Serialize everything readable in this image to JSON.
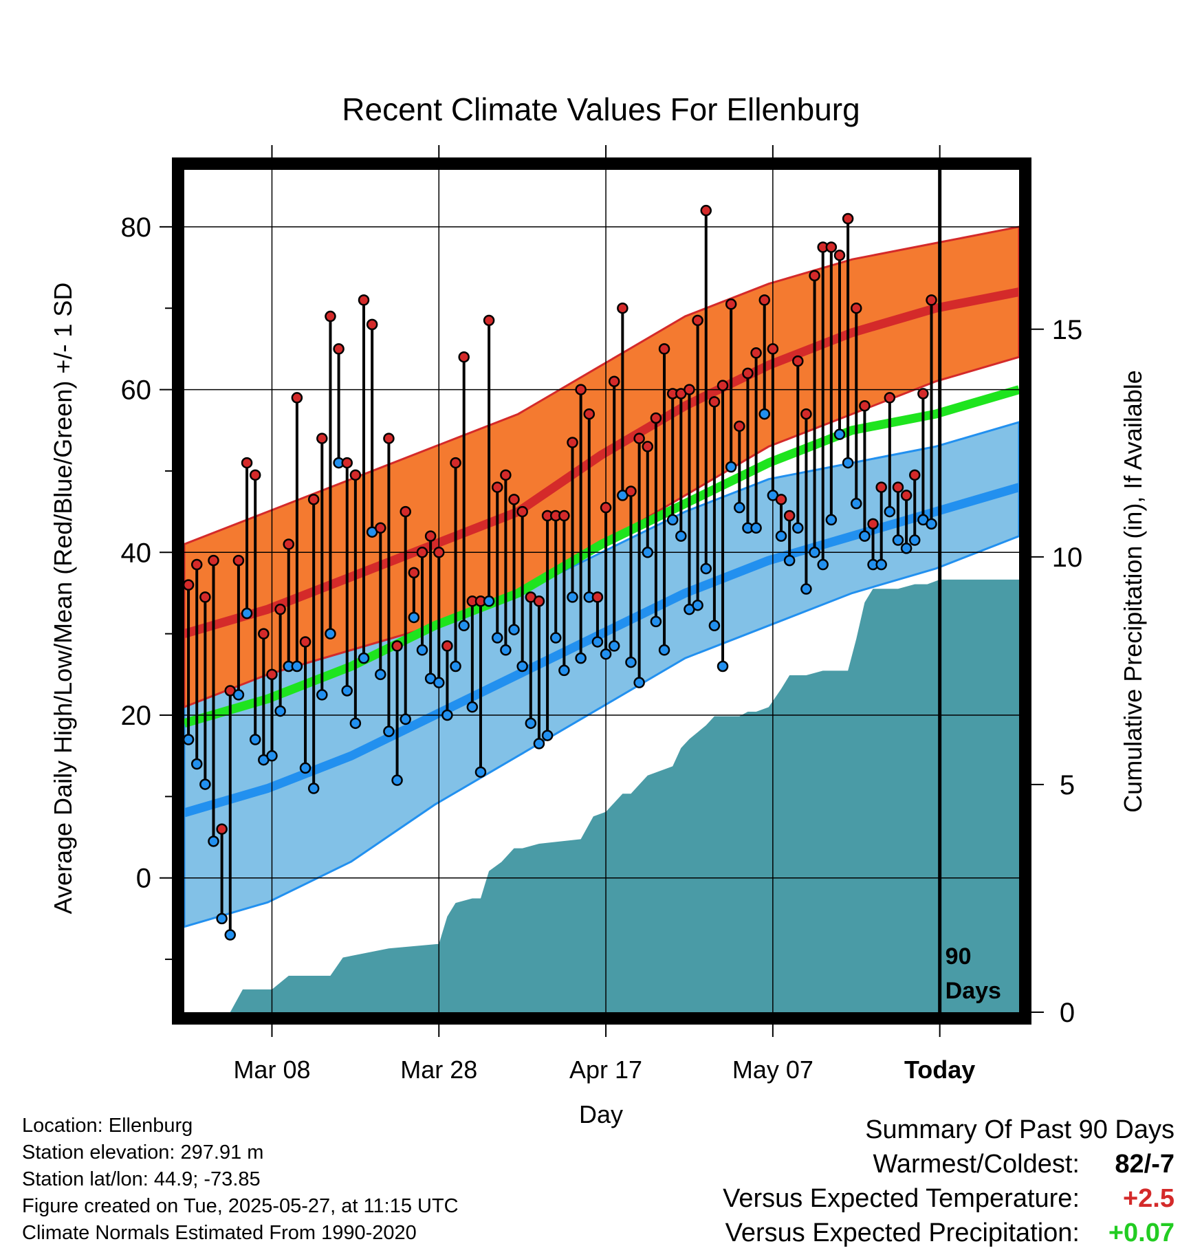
{
  "title": "Recent Climate Values For Ellenburg",
  "y_left_label": "Average Daily High/Low/Mean (Red/Blue/Green) +/- 1 SD",
  "y_right_label": "Cumulative Precipitation (in), If Available",
  "x_label": "Day",
  "days_marker": [
    "90",
    "Days"
  ],
  "footer": {
    "location": "Location: Ellenburg",
    "elevation": "Station elevation: 297.91 m",
    "latlon": "Station lat/lon: 44.9; -73.85",
    "created": "Figure created on Tue, 2025-05-27, at 11:15 UTC",
    "normals": "Climate Normals Estimated From 1990-2020"
  },
  "summary": {
    "heading": "Summary Of Past 90 Days",
    "warm_cold_label": "Warmest/Coldest:",
    "warm_cold_value": "82/-7",
    "temp_label": "Versus Expected Temperature:",
    "temp_value": "+2.5",
    "precip_label": "Versus Expected Precipitation:",
    "precip_value": "+0.07",
    "temp_color": "#d42a2a",
    "precip_color": "#22cc22"
  },
  "colors": {
    "high_band": "#f47a30",
    "high_line": "#d42a2a",
    "low_band": "#82c1e7",
    "low_line": "#2290ef",
    "mean_line": "#1ee41e",
    "precip": "#4a9ba6",
    "high_dot": "#d42a2a",
    "low_dot": "#2290ef"
  },
  "chart_data": {
    "type": "line",
    "x_ticks": [
      {
        "day": 10,
        "label": "Mar 08"
      },
      {
        "day": 30,
        "label": "Mar 28"
      },
      {
        "day": 50,
        "label": "Apr 17"
      },
      {
        "day": 70,
        "label": "May 07"
      },
      {
        "day": 90,
        "label": "Today"
      }
    ],
    "xlim": [
      -0.5,
      99.5
    ],
    "ylim": [
      -16.5,
      87
    ],
    "y_ticks": [
      0,
      20,
      40,
      60,
      80
    ],
    "y_minor_ticks": [
      -10,
      10,
      30,
      50,
      70
    ],
    "y2_range_inches": [
      0,
      18.5
    ],
    "y2_ticks": [
      0,
      5,
      10,
      15
    ],
    "grid": true,
    "normal_high": {
      "days": [
        -0.5,
        9.5,
        19.5,
        29.5,
        39.5,
        49.5,
        59.5,
        69.5,
        79.5,
        89.5,
        99.5
      ],
      "values": [
        30,
        33,
        37,
        41,
        45,
        52,
        58,
        63,
        67,
        70,
        72
      ]
    },
    "normal_high_upper": {
      "days": [
        -0.5,
        9.5,
        19.5,
        29.5,
        39.5,
        49.5,
        59.5,
        69.5,
        79.5,
        89.5,
        99.5
      ],
      "values": [
        41,
        45,
        49,
        53,
        57,
        63,
        69,
        73,
        76,
        78,
        80
      ]
    },
    "normal_high_lower": {
      "days": [
        -0.5,
        9.5,
        19.5,
        29.5,
        39.5,
        49.5,
        59.5,
        69.5,
        79.5,
        89.5,
        99.5
      ],
      "values": [
        21,
        25,
        28,
        31,
        35,
        41,
        47,
        53,
        57,
        61,
        64
      ]
    },
    "normal_low": {
      "days": [
        -0.5,
        9.5,
        19.5,
        29.5,
        39.5,
        49.5,
        59.5,
        69.5,
        79.5,
        89.5,
        99.5
      ],
      "values": [
        8,
        11,
        15,
        20,
        25,
        30,
        35,
        39,
        42,
        45,
        48
      ]
    },
    "normal_low_upper": {
      "days": [
        -0.5,
        9.5,
        19.5,
        29.5,
        39.5,
        49.5,
        59.5,
        69.5,
        79.5,
        89.5,
        99.5
      ],
      "values": [
        22,
        25,
        28,
        31,
        35,
        40,
        45,
        49,
        51,
        53,
        56
      ]
    },
    "normal_low_lower": {
      "days": [
        -0.5,
        9.5,
        19.5,
        29.5,
        39.5,
        49.5,
        59.5,
        69.5,
        79.5,
        89.5,
        99.5
      ],
      "values": [
        -6,
        -3,
        2,
        9,
        15,
        21,
        27,
        31,
        35,
        38,
        42
      ]
    },
    "normal_mean": {
      "days": [
        -0.5,
        9.5,
        19.5,
        29.5,
        39.5,
        49.5,
        59.5,
        69.5,
        79.5,
        89.5,
        99.5
      ],
      "values": [
        19,
        22,
        26,
        31,
        35,
        41,
        46,
        51,
        55,
        57,
        60
      ]
    },
    "daily_high": [
      36,
      38.5,
      34.5,
      39,
      6,
      23,
      39,
      51,
      49.5,
      30,
      25,
      33,
      41,
      59,
      29,
      46.5,
      54,
      69,
      65,
      51,
      49.5,
      71,
      68,
      43,
      54,
      28.5,
      45,
      37.5,
      40,
      42,
      40,
      28.5,
      51,
      64,
      34,
      34,
      68.5,
      48,
      49.5,
      46.5,
      45,
      34.5,
      34,
      44.5,
      44.5,
      44.5,
      53.5,
      60,
      57,
      34.5,
      45.5,
      61,
      70,
      47.5,
      54,
      53,
      56.5,
      65,
      59.5,
      59.5,
      60,
      68.5,
      82,
      58.5,
      60.5,
      70.5,
      55.5,
      62,
      64.5,
      71,
      65,
      46.5,
      44.5,
      63.5,
      57,
      74,
      77.5,
      77.5,
      76.5,
      81,
      70,
      58,
      43.5,
      48,
      59,
      48,
      47,
      49.5,
      59.5,
      71
    ],
    "daily_low": [
      17,
      14,
      11.5,
      4.5,
      -5,
      -7,
      22.5,
      32.5,
      17,
      14.5,
      15,
      20.5,
      26,
      26,
      13.5,
      11,
      22.5,
      30,
      51,
      23,
      19,
      27,
      42.5,
      25,
      18,
      12,
      19.5,
      32,
      28,
      24.5,
      24,
      20,
      26,
      31,
      21,
      13,
      34,
      29.5,
      28,
      30.5,
      26,
      19,
      16.5,
      17.5,
      29.5,
      25.5,
      34.5,
      27,
      34.5,
      29,
      27.5,
      28.5,
      47,
      26.5,
      24,
      40,
      31.5,
      28,
      44,
      42,
      33,
      33.5,
      38,
      31,
      26,
      50.5,
      45.5,
      43,
      43,
      57,
      47,
      42,
      39,
      43,
      35.5,
      40,
      38.5,
      44,
      54.5,
      51,
      46,
      42,
      38.5,
      38.5,
      45,
      41.5,
      40.5,
      41.5,
      44,
      43.5
    ],
    "cumulative_precip_in": {
      "days": [
        5,
        6.5,
        10,
        12,
        17,
        18.5,
        24,
        30,
        31,
        32,
        34,
        35,
        36,
        37.5,
        39,
        40,
        42,
        47,
        48.5,
        50,
        52,
        53,
        55,
        58,
        59,
        60,
        62,
        63,
        65,
        66,
        67,
        68,
        69.5,
        71,
        72,
        74,
        76,
        79,
        80,
        81,
        82,
        85,
        87,
        88.5,
        90,
        99.5
      ],
      "values": [
        0,
        0.5,
        0.5,
        0.8,
        0.8,
        1.2,
        1.4,
        1.5,
        2.1,
        2.4,
        2.5,
        2.5,
        3.1,
        3.3,
        3.6,
        3.6,
        3.7,
        3.8,
        4.3,
        4.4,
        4.8,
        4.8,
        5.2,
        5.4,
        5.8,
        6,
        6.3,
        6.5,
        6.5,
        6.5,
        6.6,
        6.6,
        6.7,
        7.1,
        7.4,
        7.4,
        7.5,
        7.5,
        8.2,
        9,
        9.3,
        9.3,
        9.4,
        9.4,
        9.5,
        9.5
      ]
    }
  }
}
